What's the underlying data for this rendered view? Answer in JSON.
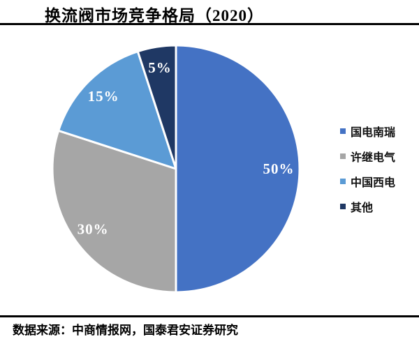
{
  "header": {
    "title": "换流阀市场竞争格局（2020）"
  },
  "chart_data": {
    "type": "pie",
    "title": "换流阀市场竞争格局（2020）",
    "categories": [
      "国电南瑞",
      "许继电气",
      "中国西电",
      "其他"
    ],
    "values": [
      50,
      30,
      15,
      5
    ],
    "labels": [
      "50%",
      "30%",
      "15%",
      "5%"
    ],
    "unit": "%",
    "colors": [
      "#4472C4",
      "#A6A6A6",
      "#5B9BD5",
      "#1F3864"
    ],
    "label_color": "#FFFFFF",
    "slice_border_color": "#FFFFFF",
    "start_angle_deg": 0,
    "direction": "clockwise",
    "legend_position": "right"
  },
  "footer": {
    "source": "数据来源：中商情报网，国泰君安证券研究"
  }
}
